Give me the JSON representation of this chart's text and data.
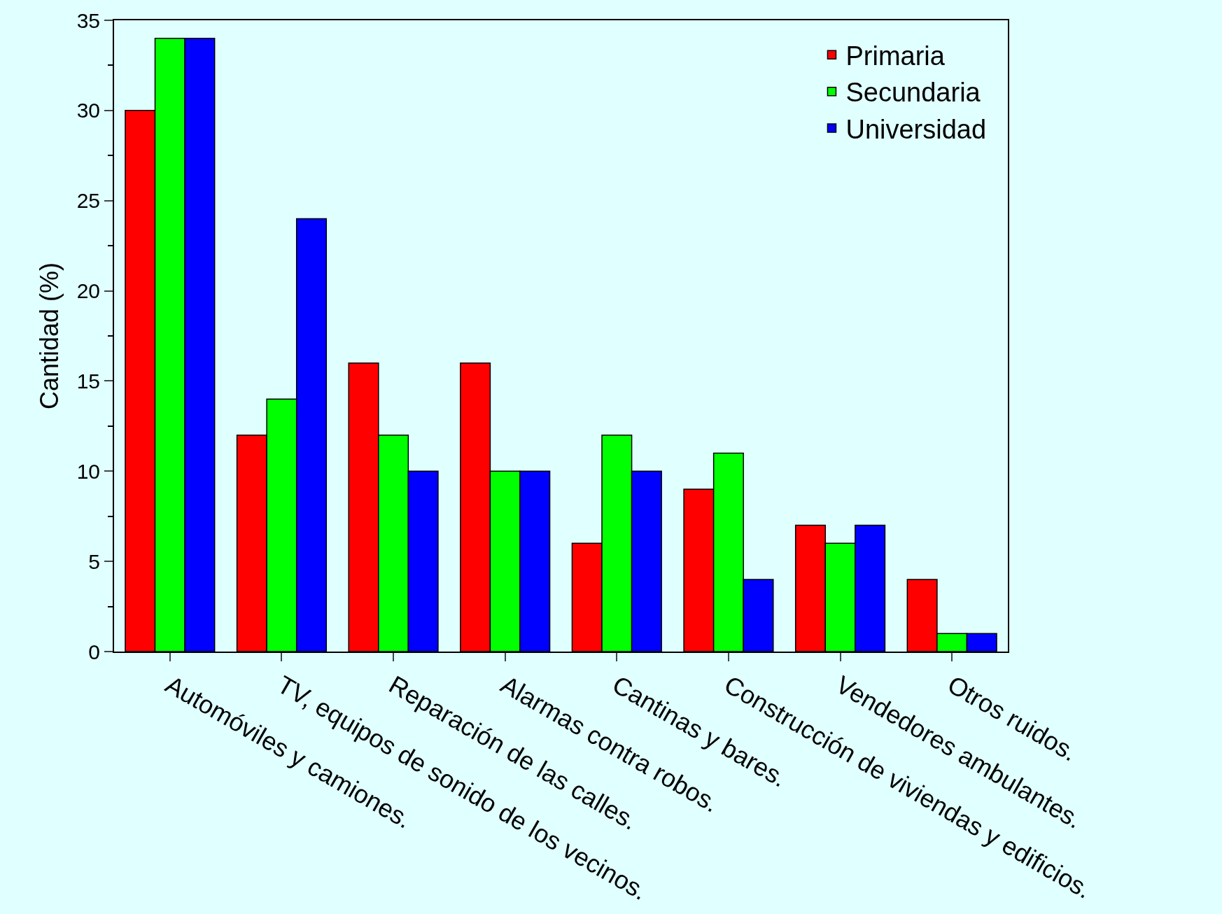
{
  "chart_data": {
    "type": "bar",
    "ylabel": "Cantidad (%)",
    "categories": [
      "Automóviles y camiones.",
      "TV, equipos de sonido de los vecinos.",
      "Reparación de las calles.",
      "Alarmas contra robos.",
      "Cantinas y bares.",
      "Construcción de viviendas y edificios.",
      "Vendedores ambulantes.",
      "Otros ruidos."
    ],
    "series": [
      {
        "name": "Primaria",
        "color": "#ff0000",
        "values": [
          30,
          12,
          16,
          16,
          6,
          9,
          7,
          4
        ]
      },
      {
        "name": "Secundaria",
        "color": "#00ff00",
        "values": [
          34,
          14,
          12,
          10,
          12,
          11,
          6,
          1
        ]
      },
      {
        "name": "Universidad",
        "color": "#0000ff",
        "values": [
          34,
          24,
          10,
          10,
          10,
          4,
          7,
          1
        ]
      }
    ],
    "ylim": [
      0,
      35
    ],
    "yticks": [
      0,
      5,
      10,
      15,
      20,
      25,
      30,
      35
    ],
    "grid": false,
    "legend": "top right"
  }
}
